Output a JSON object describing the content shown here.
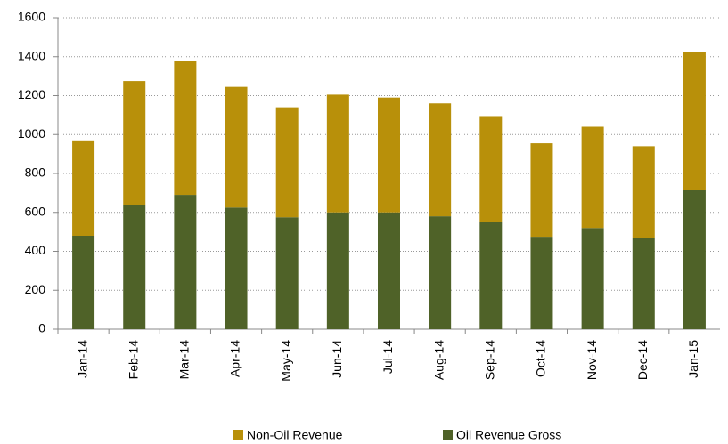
{
  "chart_data": {
    "type": "stacked_bar",
    "categories": [
      "Jan-14",
      "Feb-14",
      "Mar-14",
      "Apr-14",
      "May-14",
      "Jun-14",
      "Jul-14",
      "Aug-14",
      "Sep-14",
      "Oct-14",
      "Nov-14",
      "Dec-14",
      "Jan-15"
    ],
    "series": [
      {
        "name": "Oil Revenue Gross",
        "color": "#4f6228",
        "values": [
          480,
          640,
          690,
          625,
          575,
          600,
          600,
          580,
          550,
          475,
          520,
          470,
          715
        ]
      },
      {
        "name": "Non-Oil Revenue",
        "color": "#b8900a",
        "values": [
          490,
          635,
          690,
          620,
          565,
          605,
          590,
          580,
          545,
          480,
          520,
          470,
          710
        ]
      }
    ],
    "ylim": [
      0,
      1600
    ],
    "yticks": [
      0,
      200,
      400,
      600,
      800,
      1000,
      1200,
      1400,
      1600
    ],
    "grid": true
  }
}
